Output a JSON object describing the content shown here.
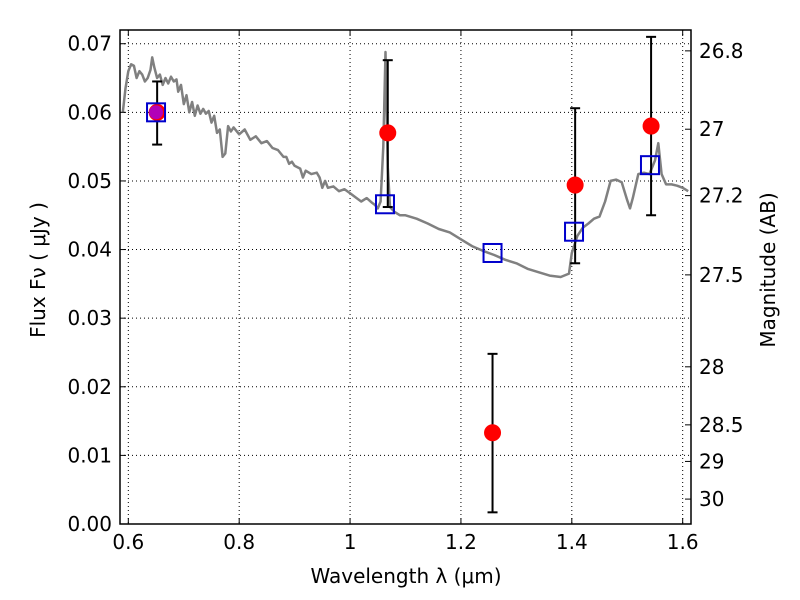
{
  "chart_data": {
    "type": "scatter",
    "xlabel": "Wavelength  λ (μm)",
    "ylabel": "Flux  Fν  ( μJy )",
    "y2label": "Magnitude (AB)",
    "xlim": [
      0.585,
      1.615
    ],
    "ylim": [
      0.0,
      0.072
    ],
    "grid": true,
    "colors": {
      "model": "#808080",
      "observed": "#ff0000",
      "synthetic": "#0000cc",
      "errorbar": "#000000",
      "overlap": "#aa00cc"
    },
    "x_ticks": [
      {
        "value": 0.6,
        "label": "0.6"
      },
      {
        "value": 0.8,
        "label": "0.8"
      },
      {
        "value": 1.0,
        "label": "1"
      },
      {
        "value": 1.2,
        "label": "1.2"
      },
      {
        "value": 1.4,
        "label": "1.4"
      },
      {
        "value": 1.6,
        "label": "1.6"
      }
    ],
    "y_ticks": [
      {
        "value": 0.0,
        "label": "0.00"
      },
      {
        "value": 0.01,
        "label": "0.01"
      },
      {
        "value": 0.02,
        "label": "0.02"
      },
      {
        "value": 0.03,
        "label": "0.03"
      },
      {
        "value": 0.04,
        "label": "0.04"
      },
      {
        "value": 0.05,
        "label": "0.05"
      },
      {
        "value": 0.06,
        "label": "0.06"
      },
      {
        "value": 0.07,
        "label": "0.07"
      }
    ],
    "y2_ticks": [
      {
        "flux": 0.06896,
        "label": "26.8"
      },
      {
        "flux": 0.05754,
        "label": "27"
      },
      {
        "flux": 0.04786,
        "label": "27.2"
      },
      {
        "flux": 0.03631,
        "label": "27.5"
      },
      {
        "flux": 0.02291,
        "label": "28"
      },
      {
        "flux": 0.01445,
        "label": "28.5"
      },
      {
        "flux": 0.00912,
        "label": "29"
      },
      {
        "flux": 0.00363,
        "label": "30"
      }
    ],
    "series": [
      {
        "kind": "model",
        "points": [
          [
            0.59,
            0.06
          ],
          [
            0.595,
            0.0635
          ],
          [
            0.6,
            0.066
          ],
          [
            0.605,
            0.067
          ],
          [
            0.61,
            0.0668
          ],
          [
            0.615,
            0.065
          ],
          [
            0.62,
            0.066
          ],
          [
            0.625,
            0.0655
          ],
          [
            0.63,
            0.0645
          ],
          [
            0.635,
            0.065
          ],
          [
            0.64,
            0.0662
          ],
          [
            0.643,
            0.068
          ],
          [
            0.647,
            0.0665
          ],
          [
            0.652,
            0.065
          ],
          [
            0.657,
            0.0655
          ],
          [
            0.662,
            0.064
          ],
          [
            0.667,
            0.065
          ],
          [
            0.672,
            0.0642
          ],
          [
            0.677,
            0.0652
          ],
          [
            0.682,
            0.0645
          ],
          [
            0.687,
            0.0648
          ],
          [
            0.69,
            0.063
          ],
          [
            0.695,
            0.064
          ],
          [
            0.7,
            0.0612
          ],
          [
            0.705,
            0.0625
          ],
          [
            0.71,
            0.06
          ],
          [
            0.715,
            0.0615
          ],
          [
            0.72,
            0.0595
          ],
          [
            0.725,
            0.061
          ],
          [
            0.73,
            0.0598
          ],
          [
            0.735,
            0.0605
          ],
          [
            0.74,
            0.0598
          ],
          [
            0.745,
            0.0602
          ],
          [
            0.75,
            0.0585
          ],
          [
            0.755,
            0.0595
          ],
          [
            0.76,
            0.057
          ],
          [
            0.765,
            0.0575
          ],
          [
            0.77,
            0.0535
          ],
          [
            0.775,
            0.054
          ],
          [
            0.78,
            0.058
          ],
          [
            0.785,
            0.0572
          ],
          [
            0.79,
            0.0578
          ],
          [
            0.8,
            0.0568
          ],
          [
            0.81,
            0.0575
          ],
          [
            0.82,
            0.056
          ],
          [
            0.83,
            0.0565
          ],
          [
            0.84,
            0.0555
          ],
          [
            0.85,
            0.0558
          ],
          [
            0.86,
            0.0548
          ],
          [
            0.87,
            0.0545
          ],
          [
            0.88,
            0.0535
          ],
          [
            0.885,
            0.0535
          ],
          [
            0.89,
            0.0525
          ],
          [
            0.895,
            0.0528
          ],
          [
            0.9,
            0.0522
          ],
          [
            0.91,
            0.0518
          ],
          [
            0.915,
            0.0505
          ],
          [
            0.92,
            0.0515
          ],
          [
            0.93,
            0.051
          ],
          [
            0.94,
            0.0512
          ],
          [
            0.945,
            0.0505
          ],
          [
            0.95,
            0.049
          ],
          [
            0.955,
            0.05
          ],
          [
            0.96,
            0.049
          ],
          [
            0.97,
            0.0492
          ],
          [
            0.98,
            0.0485
          ],
          [
            0.99,
            0.0488
          ],
          [
            1.0,
            0.0482
          ],
          [
            1.01,
            0.0476
          ],
          [
            1.02,
            0.047
          ],
          [
            1.03,
            0.0475
          ],
          [
            1.04,
            0.0468
          ],
          [
            1.045,
            0.0465
          ],
          [
            1.05,
            0.046
          ],
          [
            1.055,
            0.047
          ],
          [
            1.06,
            0.055
          ],
          [
            1.064,
            0.0688
          ],
          [
            1.068,
            0.052
          ],
          [
            1.072,
            0.0462
          ],
          [
            1.08,
            0.0455
          ],
          [
            1.09,
            0.045
          ],
          [
            1.1,
            0.045
          ],
          [
            1.12,
            0.0445
          ],
          [
            1.14,
            0.0438
          ],
          [
            1.16,
            0.043
          ],
          [
            1.18,
            0.0425
          ],
          [
            1.2,
            0.0415
          ],
          [
            1.22,
            0.0405
          ],
          [
            1.24,
            0.0398
          ],
          [
            1.26,
            0.0392
          ],
          [
            1.28,
            0.0385
          ],
          [
            1.3,
            0.038
          ],
          [
            1.32,
            0.0372
          ],
          [
            1.34,
            0.0367
          ],
          [
            1.36,
            0.0362
          ],
          [
            1.38,
            0.036
          ],
          [
            1.395,
            0.0365
          ],
          [
            1.4,
            0.0395
          ],
          [
            1.41,
            0.042
          ],
          [
            1.42,
            0.0432
          ],
          [
            1.43,
            0.0438
          ],
          [
            1.44,
            0.0445
          ],
          [
            1.45,
            0.0448
          ],
          [
            1.46,
            0.047
          ],
          [
            1.47,
            0.05
          ],
          [
            1.48,
            0.0502
          ],
          [
            1.49,
            0.0498
          ],
          [
            1.5,
            0.0472
          ],
          [
            1.505,
            0.046
          ],
          [
            1.51,
            0.0475
          ],
          [
            1.52,
            0.051
          ],
          [
            1.53,
            0.0512
          ],
          [
            1.54,
            0.051
          ],
          [
            1.55,
            0.053
          ],
          [
            1.556,
            0.0555
          ],
          [
            1.562,
            0.051
          ],
          [
            1.57,
            0.0495
          ],
          [
            1.58,
            0.0495
          ],
          [
            1.59,
            0.0493
          ],
          [
            1.6,
            0.049
          ],
          [
            1.61,
            0.0485
          ]
        ]
      },
      {
        "kind": "observed",
        "points": [
          {
            "x": 0.652,
            "y": 0.06,
            "err": [
              0.0553,
              0.0645
            ]
          },
          {
            "x": 1.068,
            "y": 0.057,
            "err": [
              0.0462,
              0.0676
            ]
          },
          {
            "x": 1.257,
            "y": 0.0133,
            "err": [
              0.0017,
              0.0248
            ]
          },
          {
            "x": 1.406,
            "y": 0.0494,
            "err": [
              0.038,
              0.0606
            ]
          },
          {
            "x": 1.543,
            "y": 0.058,
            "err": [
              0.045,
              0.071
            ]
          }
        ]
      },
      {
        "kind": "synthetic",
        "points": [
          {
            "x": 0.65,
            "y": 0.06
          },
          {
            "x": 1.063,
            "y": 0.0466
          },
          {
            "x": 1.257,
            "y": 0.0395
          },
          {
            "x": 1.404,
            "y": 0.0426
          },
          {
            "x": 1.541,
            "y": 0.0523
          }
        ]
      }
    ]
  }
}
